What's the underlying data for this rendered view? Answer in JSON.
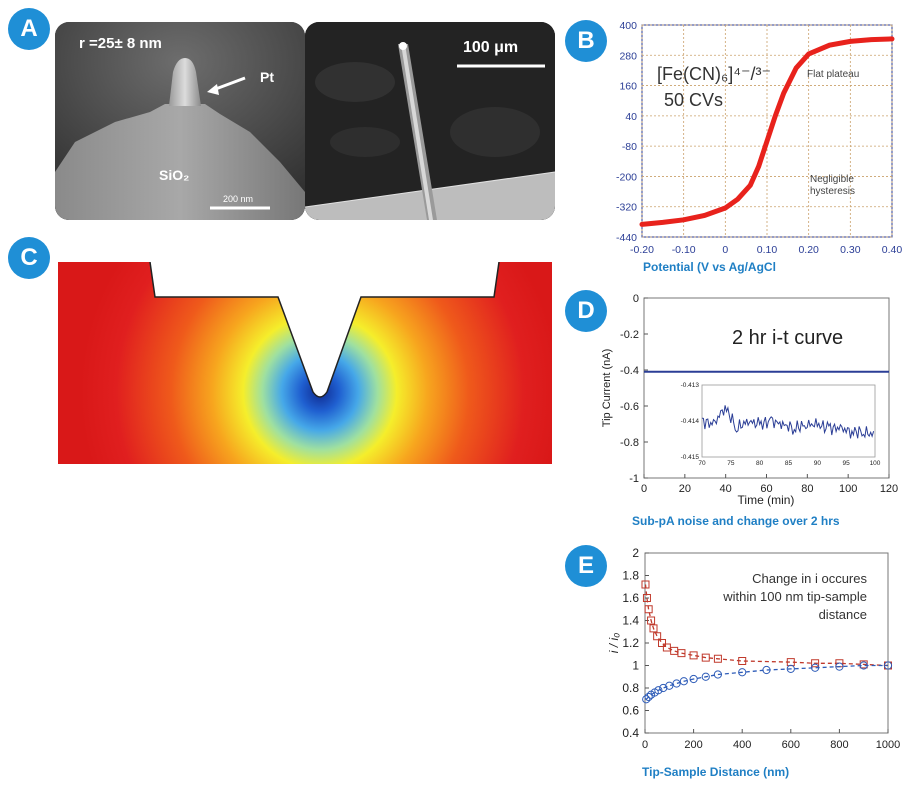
{
  "panels": {
    "a": {
      "badge": "A",
      "left_label": "r =25± 8 nm",
      "pt_label": "Pt",
      "sio2_label": "SiO₂",
      "scale_small": "200 nm",
      "scale_big": "100 μm"
    },
    "b": {
      "badge": "B",
      "annot_main_1": "[Fe(CN)₆]⁴⁻/³⁻",
      "annot_main_2": "50 CVs",
      "annot_plateau": "Flat plateau",
      "annot_hyst_1": "Negligible",
      "annot_hyst_2": "hysteresis",
      "caption": "Potential (V vs Ag/AgCl"
    },
    "c": {
      "badge": "C"
    },
    "d": {
      "badge": "D",
      "annot": "2 hr i-t curve",
      "caption": "Sub-pA noise and change over 2 hrs"
    },
    "e": {
      "badge": "E",
      "annot_1": "Change in i occures",
      "annot_2": "within 100 nm tip-sample",
      "annot_3": "distance",
      "caption": "Tip-Sample Distance (nm)"
    }
  },
  "chart_data": [
    {
      "id": "cv",
      "type": "line",
      "xlabel": "",
      "ylabel": "",
      "xlim": [
        -0.2,
        0.4
      ],
      "ylim": [
        -440,
        400
      ],
      "x_ticks": [
        "-0.20",
        "-0.10",
        "0",
        "0.10",
        "0.20",
        "0.30",
        "0.40"
      ],
      "y_ticks": [
        "400",
        "280",
        "160",
        "40",
        "-80",
        "-200",
        "-320",
        "-440"
      ],
      "grid": true,
      "color": "#e8221c",
      "series": [
        {
          "x": [
            -0.2,
            -0.15,
            -0.1,
            -0.05,
            0.0,
            0.03,
            0.06,
            0.08,
            0.1,
            0.12,
            0.14,
            0.17,
            0.2,
            0.25,
            0.3,
            0.35,
            0.4
          ],
          "values": [
            -390,
            -382,
            -372,
            -355,
            -325,
            -290,
            -235,
            -160,
            -60,
            40,
            130,
            230,
            285,
            320,
            335,
            342,
            345
          ]
        }
      ]
    },
    {
      "id": "it",
      "type": "line",
      "xlabel": "Time (min)",
      "ylabel": "Tip Current (nA)",
      "xlim": [
        0,
        120
      ],
      "ylim": [
        -1,
        0
      ],
      "x_ticks": [
        "0",
        "20",
        "40",
        "60",
        "80",
        "100",
        "120"
      ],
      "y_ticks": [
        "0",
        "-0.2",
        "-0.4",
        "-0.6",
        "-0.8",
        "-1"
      ],
      "grid": false,
      "color": "#2b3e96",
      "series": [
        {
          "x": [
            0,
            120
          ],
          "values": [
            -0.41,
            -0.41
          ]
        }
      ],
      "inset": {
        "xlim": [
          70,
          100
        ],
        "ylim": [
          -0.415,
          -0.413
        ],
        "x_ticks": [
          "70",
          "75",
          "80",
          "85",
          "90",
          "95",
          "100"
        ],
        "y_ticks": [
          "-0.413",
          "-0.414",
          "-0.415"
        ],
        "x": [
          70,
          72,
          74,
          76,
          78,
          80,
          82,
          84,
          86,
          88,
          90,
          92,
          94,
          96,
          98,
          100
        ],
        "values": [
          -0.414,
          -0.4141,
          -0.4136,
          -0.4142,
          -0.414,
          -0.4141,
          -0.414,
          -0.4141,
          -0.4142,
          -0.4141,
          -0.4141,
          -0.4142,
          -0.4142,
          -0.4143,
          -0.4143,
          -0.4144
        ]
      }
    },
    {
      "id": "approach",
      "type": "scatter",
      "xlabel": "",
      "ylabel": "i / i₀",
      "xlim": [
        0,
        1000
      ],
      "ylim": [
        0.4,
        2.0
      ],
      "x_ticks": [
        "0",
        "200",
        "400",
        "600",
        "800",
        "1000"
      ],
      "y_ticks": [
        "2",
        "1.8",
        "1.6",
        "1.4",
        "1.2",
        "1",
        "0.8",
        "0.6",
        "0.4"
      ],
      "grid": false,
      "series": [
        {
          "marker": "square",
          "color": "#c0392b",
          "x": [
            2,
            8,
            15,
            25,
            35,
            50,
            70,
            90,
            120,
            150,
            200,
            250,
            300,
            400,
            600,
            700,
            800,
            900,
            1000
          ],
          "values": [
            1.72,
            1.6,
            1.5,
            1.4,
            1.33,
            1.26,
            1.2,
            1.16,
            1.13,
            1.11,
            1.09,
            1.07,
            1.06,
            1.04,
            1.03,
            1.02,
            1.02,
            1.01,
            1.0
          ]
        },
        {
          "marker": "circle",
          "color": "#2e5cb8",
          "x": [
            5,
            15,
            25,
            40,
            55,
            75,
            100,
            130,
            160,
            200,
            250,
            300,
            400,
            500,
            600,
            700,
            800,
            900,
            1000
          ],
          "values": [
            0.7,
            0.72,
            0.74,
            0.76,
            0.78,
            0.8,
            0.82,
            0.84,
            0.86,
            0.88,
            0.9,
            0.92,
            0.94,
            0.96,
            0.97,
            0.98,
            0.99,
            1.0,
            1.0
          ]
        }
      ]
    }
  ]
}
